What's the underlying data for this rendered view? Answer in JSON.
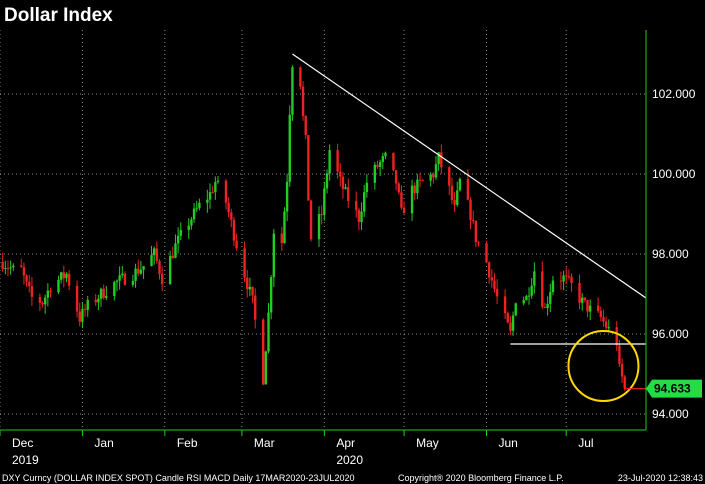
{
  "chart_data": {
    "type": "candlestick",
    "title": "Dollar Index",
    "ylim": [
      93.6,
      103.6
    ],
    "yticks": [
      94.0,
      96.0,
      98.0,
      100.0,
      102.0
    ],
    "ytick_labels": [
      "94.000",
      "96.000",
      "98.000",
      "100.000",
      "102.000"
    ],
    "xlim": [
      "2019-12-01",
      "2020-07-31"
    ],
    "month_labels": [
      {
        "date": "2019-12-01",
        "label": "Dec",
        "sub": "2019"
      },
      {
        "date": "2020-01-01",
        "label": "Jan"
      },
      {
        "date": "2020-02-01",
        "label": "Feb"
      },
      {
        "date": "2020-03-01",
        "label": "Mar"
      },
      {
        "date": "2020-04-01",
        "label": "Apr",
        "sub": "2020"
      },
      {
        "date": "2020-05-01",
        "label": "May"
      },
      {
        "date": "2020-06-01",
        "label": "Jun"
      },
      {
        "date": "2020-07-01",
        "label": "Jul"
      }
    ],
    "price_path": [
      [
        "2019-12-02",
        97.8
      ],
      [
        "2019-12-06",
        97.6
      ],
      [
        "2019-12-09",
        97.6
      ],
      [
        "2019-12-11",
        97.2
      ],
      [
        "2019-12-13",
        96.9
      ],
      [
        "2019-12-17",
        96.8
      ],
      [
        "2019-12-20",
        97.2
      ],
      [
        "2019-12-26",
        97.5
      ],
      [
        "2019-12-31",
        96.4
      ],
      [
        "2020-01-03",
        96.7
      ],
      [
        "2020-01-08",
        97.0
      ],
      [
        "2020-01-14",
        97.3
      ],
      [
        "2020-01-20",
        97.5
      ],
      [
        "2020-01-24",
        97.7
      ],
      [
        "2020-01-28",
        98.0
      ],
      [
        "2020-01-31",
        97.4
      ],
      [
        "2020-02-05",
        98.2
      ],
      [
        "2020-02-10",
        98.8
      ],
      [
        "2020-02-14",
        99.2
      ],
      [
        "2020-02-18",
        99.5
      ],
      [
        "2020-02-20",
        99.8
      ],
      [
        "2020-02-24",
        99.3
      ],
      [
        "2020-02-27",
        98.5
      ],
      [
        "2020-03-02",
        97.5
      ],
      [
        "2020-03-05",
        96.8
      ],
      [
        "2020-03-09",
        94.9
      ],
      [
        "2020-03-11",
        96.5
      ],
      [
        "2020-03-13",
        98.6
      ],
      [
        "2020-03-16",
        98.3
      ],
      [
        "2020-03-18",
        99.9
      ],
      [
        "2020-03-19",
        101.6
      ],
      [
        "2020-03-20",
        102.8
      ],
      [
        "2020-03-23",
        102.3
      ],
      [
        "2020-03-24",
        101.4
      ],
      [
        "2020-03-25",
        100.8
      ],
      [
        "2020-03-26",
        99.4
      ],
      [
        "2020-03-27",
        98.4
      ],
      [
        "2020-03-31",
        99.0
      ],
      [
        "2020-04-03",
        100.6
      ],
      [
        "2020-04-07",
        99.8
      ],
      [
        "2020-04-09",
        99.5
      ],
      [
        "2020-04-14",
        98.9
      ],
      [
        "2020-04-17",
        99.8
      ],
      [
        "2020-04-21",
        100.2
      ],
      [
        "2020-04-24",
        100.4
      ],
      [
        "2020-04-28",
        99.8
      ],
      [
        "2020-04-30",
        99.0
      ],
      [
        "2020-05-04",
        99.6
      ],
      [
        "2020-05-08",
        99.8
      ],
      [
        "2020-05-12",
        100.0
      ],
      [
        "2020-05-14",
        100.4
      ],
      [
        "2020-05-18",
        99.6
      ],
      [
        "2020-05-20",
        99.1
      ],
      [
        "2020-05-22",
        99.8
      ],
      [
        "2020-05-26",
        99.0
      ],
      [
        "2020-05-28",
        98.4
      ],
      [
        "2020-06-01",
        97.8
      ],
      [
        "2020-06-05",
        96.9
      ],
      [
        "2020-06-10",
        96.0
      ],
      [
        "2020-06-12",
        96.9
      ],
      [
        "2020-06-16",
        96.9
      ],
      [
        "2020-06-19",
        97.6
      ],
      [
        "2020-06-23",
        96.6
      ],
      [
        "2020-06-26",
        97.4
      ],
      [
        "2020-06-30",
        97.4
      ],
      [
        "2020-07-03",
        97.2
      ],
      [
        "2020-07-07",
        96.8
      ],
      [
        "2020-07-10",
        96.6
      ],
      [
        "2020-07-14",
        96.4
      ],
      [
        "2020-07-17",
        96.1
      ],
      [
        "2020-07-20",
        95.8
      ],
      [
        "2020-07-21",
        95.1
      ],
      [
        "2020-07-22",
        94.9
      ],
      [
        "2020-07-23",
        94.633
      ]
    ],
    "annotations": {
      "trendline": {
        "from": [
          "2020-03-20",
          103.0
        ],
        "to": [
          "2020-07-31",
          96.9
        ],
        "color": "#ffffff"
      },
      "support_line": {
        "from": [
          "2020-06-10",
          95.75
        ],
        "to": [
          "2020-07-31",
          95.75
        ],
        "color": "#ffffff"
      },
      "highlight_circle": {
        "center": [
          "2020-07-15",
          95.2
        ],
        "color": "#ffd700"
      },
      "last_price_line": {
        "from": [
          "2020-07-23",
          94.633
        ],
        "to": [
          "2020-07-31",
          94.633
        ],
        "color": "#ff2020"
      }
    },
    "last_price": 94.633,
    "last_price_label": "94.633",
    "colors": {
      "up": "#22cc22",
      "down": "#ee2222",
      "grid": "#ffffff",
      "last_price_bg": "#22dd44"
    },
    "grid": true
  },
  "footer": {
    "left": "DXY Curncy (DOLLAR INDEX SPOT) Candle RSI MACD  Daily 17MAR2020-23JUL2020",
    "center": "Copyright® 2020 Bloomberg Finance L.P.",
    "right": "23-Jul-2020 12:38:43"
  }
}
